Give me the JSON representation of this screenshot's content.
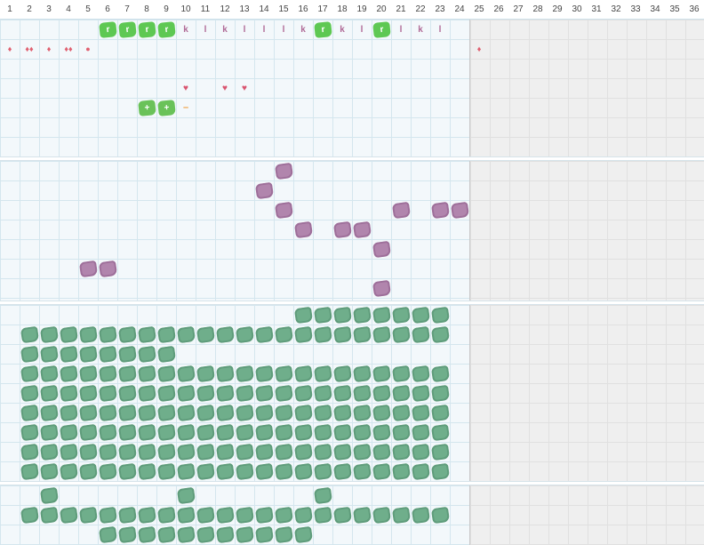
{
  "columns": [
    "1",
    "2",
    "3",
    "4",
    "5",
    "6",
    "7",
    "8",
    "9",
    "10",
    "11",
    "12",
    "13",
    "14",
    "15",
    "16",
    "17",
    "18",
    "19",
    "20",
    "21",
    "22",
    "23",
    "24",
    "25",
    "26",
    "27",
    "28",
    "29",
    "30",
    "31",
    "32",
    "33",
    "34",
    "35",
    "36"
  ],
  "colors": {
    "grid_line": "#d4e6ee",
    "grid_bg": "#f3f8fb",
    "inactive_bg": "#efefef",
    "green_tag": "#5ec853",
    "mint_blob": "#6fae8b",
    "plum_blob": "#b185ad",
    "letter": "#b06b97",
    "drop": "#e06070",
    "heart": "#d9546f",
    "minus": "#f0a040"
  },
  "band1": {
    "tags": [
      {
        "col": 6,
        "row": 1,
        "type": "gtag",
        "text": "r"
      },
      {
        "col": 7,
        "row": 1,
        "type": "gtag",
        "text": "r"
      },
      {
        "col": 8,
        "row": 1,
        "type": "gtag",
        "text": "r"
      },
      {
        "col": 9,
        "row": 1,
        "type": "gtag",
        "text": "r"
      },
      {
        "col": 10,
        "row": 1,
        "type": "letter",
        "text": "k"
      },
      {
        "col": 11,
        "row": 1,
        "type": "letter",
        "text": "l"
      },
      {
        "col": 12,
        "row": 1,
        "type": "letter",
        "text": "k"
      },
      {
        "col": 13,
        "row": 1,
        "type": "letter",
        "text": "l"
      },
      {
        "col": 14,
        "row": 1,
        "type": "letter",
        "text": "l"
      },
      {
        "col": 15,
        "row": 1,
        "type": "letter",
        "text": "l"
      },
      {
        "col": 16,
        "row": 1,
        "type": "letter",
        "text": "k"
      },
      {
        "col": 17,
        "row": 1,
        "type": "gtag",
        "text": "r"
      },
      {
        "col": 18,
        "row": 1,
        "type": "letter",
        "text": "k"
      },
      {
        "col": 19,
        "row": 1,
        "type": "letter",
        "text": "l"
      },
      {
        "col": 20,
        "row": 1,
        "type": "gtag",
        "text": "r"
      },
      {
        "col": 21,
        "row": 1,
        "type": "letter",
        "text": "l"
      },
      {
        "col": 22,
        "row": 1,
        "type": "letter",
        "text": "k"
      },
      {
        "col": 23,
        "row": 1,
        "type": "letter",
        "text": "l"
      },
      {
        "col": 1,
        "row": 2,
        "type": "drop",
        "text": "♦"
      },
      {
        "col": 2,
        "row": 2,
        "type": "drop",
        "text": "♦♦"
      },
      {
        "col": 3,
        "row": 2,
        "type": "drop",
        "text": "♦"
      },
      {
        "col": 4,
        "row": 2,
        "type": "drop",
        "text": "♦♦"
      },
      {
        "col": 5,
        "row": 2,
        "type": "drop",
        "text": "●"
      },
      {
        "col": 25,
        "row": 2,
        "type": "drop",
        "text": "♦"
      },
      {
        "col": 10,
        "row": 4,
        "type": "heart",
        "text": "♥"
      },
      {
        "col": 12,
        "row": 4,
        "type": "heart",
        "text": "♥"
      },
      {
        "col": 13,
        "row": 4,
        "type": "heart",
        "text": "♥"
      },
      {
        "col": 8,
        "row": 5,
        "type": "gtagplus",
        "text": "+"
      },
      {
        "col": 9,
        "row": 5,
        "type": "gtagplus",
        "text": "+"
      },
      {
        "col": 10,
        "row": 5,
        "type": "minus",
        "text": "–"
      }
    ]
  },
  "band2": {
    "cells": [
      [
        15,
        1
      ],
      [
        14,
        2
      ],
      [
        15,
        3
      ],
      [
        21,
        3
      ],
      [
        23,
        3
      ],
      [
        24,
        3
      ],
      [
        16,
        4
      ],
      [
        18,
        4
      ],
      [
        19,
        4
      ],
      [
        20,
        5
      ],
      [
        5,
        6
      ],
      [
        6,
        6
      ],
      [
        20,
        7
      ]
    ]
  },
  "band3": {
    "row_ranges": [
      [
        16,
        23
      ],
      [
        2,
        23
      ],
      [
        2,
        9
      ],
      [
        2,
        23
      ],
      [
        2,
        23
      ],
      [
        2,
        23
      ],
      [
        2,
        23
      ],
      [
        2,
        23
      ],
      [
        2,
        23
      ]
    ]
  },
  "band4": {
    "cells": [
      [
        3,
        1
      ],
      [
        10,
        1
      ],
      [
        17,
        1
      ]
    ],
    "row_ranges": [
      [
        0,
        0
      ],
      [
        2,
        23
      ],
      [
        6,
        16
      ]
    ]
  }
}
